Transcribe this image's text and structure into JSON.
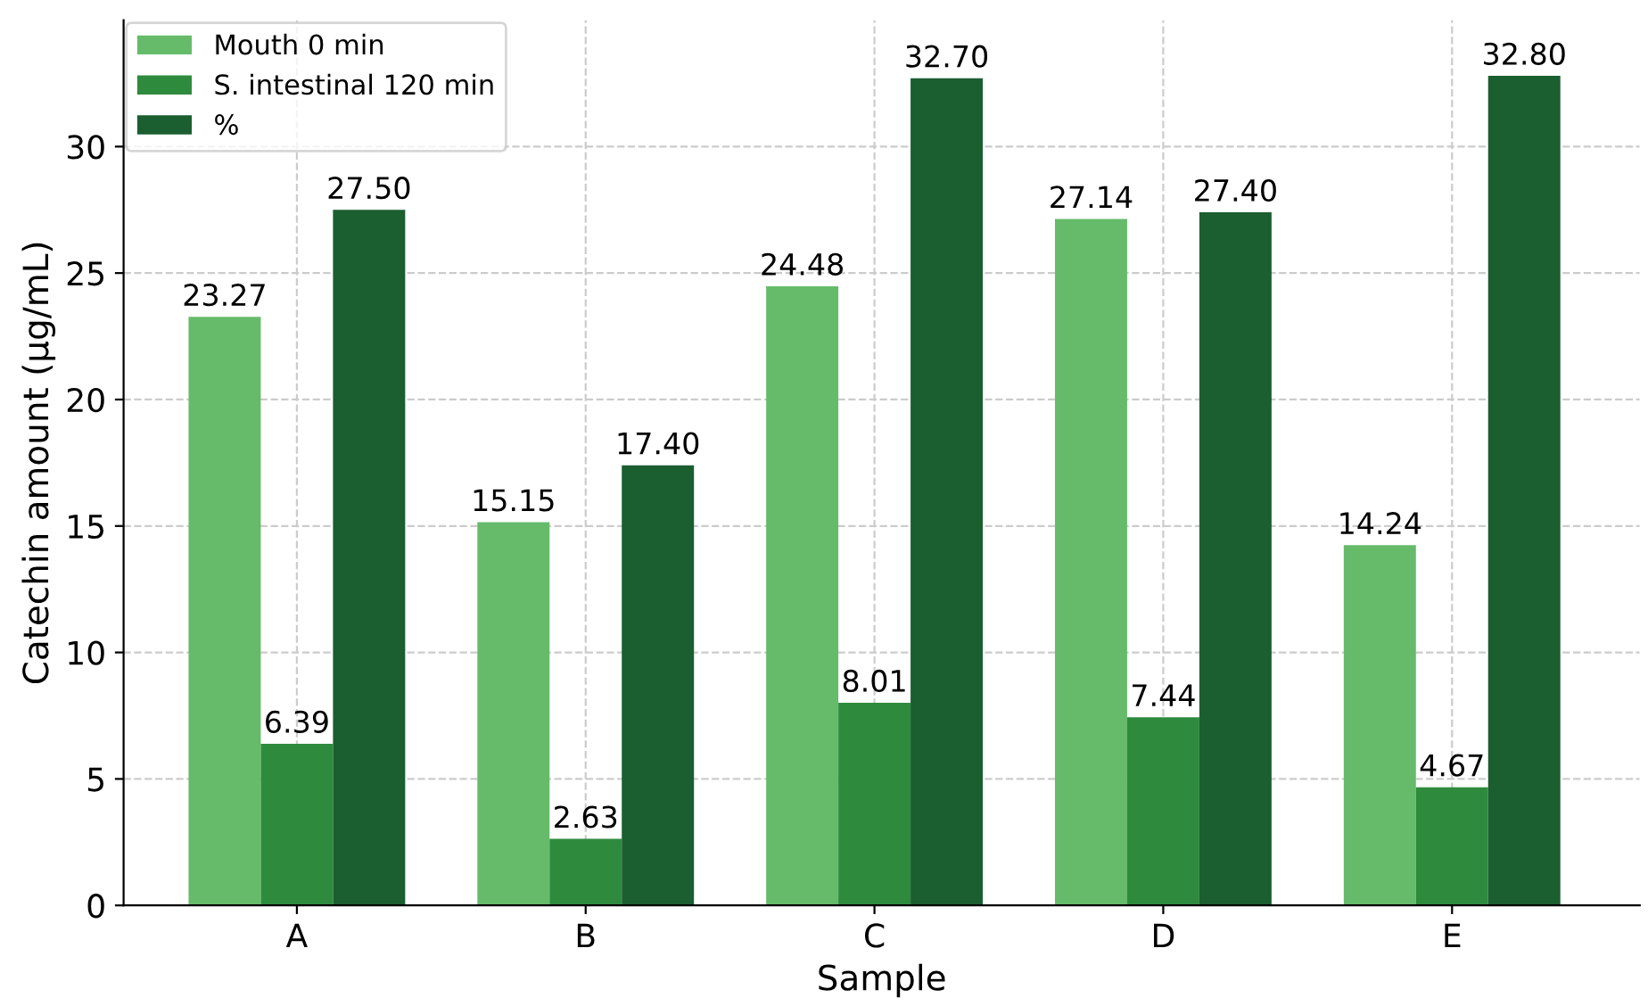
{
  "chart_data": {
    "type": "bar",
    "xlabel": "Sample",
    "ylabel": "Catechin amount (µg/mL)",
    "categories": [
      "A",
      "B",
      "C",
      "D",
      "E"
    ],
    "series": [
      {
        "name": "Mouth 0 min",
        "color": "#66bb6a",
        "values": [
          23.27,
          15.15,
          24.48,
          27.14,
          14.24
        ],
        "value_labels": [
          "23.27",
          "15.15",
          "24.48",
          "27.14",
          "14.24"
        ]
      },
      {
        "name": "S. intestinal 120 min",
        "color": "#2e8b3e",
        "values": [
          6.39,
          2.63,
          8.01,
          7.44,
          4.67
        ],
        "value_labels": [
          "6.39",
          "2.63",
          "8.01",
          "7.44",
          "4.67"
        ]
      },
      {
        "name": "%",
        "color": "#1b5e30",
        "values": [
          27.5,
          17.4,
          32.7,
          27.4,
          32.8
        ],
        "value_labels": [
          "27.50",
          "17.40",
          "32.70",
          "27.40",
          "32.80"
        ]
      }
    ],
    "ylim": [
      0,
      35
    ],
    "yticks": [
      0,
      5,
      10,
      15,
      20,
      25,
      30
    ],
    "grid": true,
    "legend": "top left"
  }
}
